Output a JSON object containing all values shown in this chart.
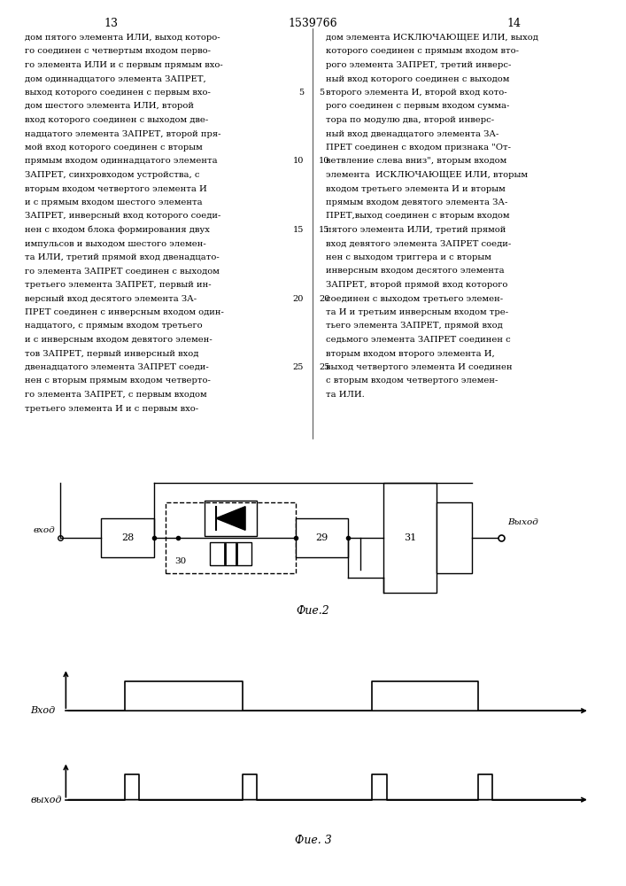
{
  "bg_color": "#ffffff",
  "text_color": "#000000",
  "page_numbers": [
    "13",
    "1539766",
    "14"
  ],
  "left_text": [
    "дом пятого элемента ИЛИ, выход которо-",
    "го соединен с четвертым входом перво-",
    "го элемента ИЛИ и с первым прямым вхо-",
    "дом одиннадцатого элемента ЗАПРЕТ,",
    "выход которого соединен с первым вхо-",
    "дом шестого элемента ИЛИ, второй",
    "вход которого соединен с выходом две-",
    "надцатого элемента ЗАПРЕТ, второй пря-",
    "мой вход которого соединен с вторым",
    "прямым входом одиннадцатого элемента",
    "ЗАПРЕТ, синхровходом устройства, с",
    "вторым входом четвертого элемента И",
    "и с прямым входом шестого элемента",
    "ЗАПРЕТ, инверсный вход которого соеди-",
    "нен с входом блока формирования двух",
    "импульсов и выходом шестого элемен-",
    "та ИЛИ, третий прямой вход двенадцато-",
    "го элемента ЗАПРЕТ соединен с выходом",
    "третьего элемента ЗАПРЕТ, первый ин-",
    "версный вход десятого элемента ЗА-",
    "ПРЕТ соединен с инверсным входом один-",
    "надцатого, с прямым входом третьего",
    "и с инверсным входом девятого элемен-",
    "тов ЗАПРЕТ, первый инверсный вход",
    "двенадцатого элемента ЗАПРЕТ соеди-",
    "нен с вторым прямым входом четверто-",
    "го элемента ЗАПРЕТ, с первым входом",
    "третьего элемента И и с первым вхо-"
  ],
  "right_text": [
    "дом элемента ИСКЛЮЧАЮЩЕЕ ИЛИ, выход",
    "которого соединен с прямым входом вто-",
    "рого элемента ЗАПРЕТ, третий инверс-",
    "ный вход которого соединен с выходом",
    "второго элемента И, второй вход кото-",
    "рого соединен с первым входом сумма-",
    "тора по модулю два, второй инверс-",
    "ный вход двенадцатого элемента ЗА-",
    "ПРЕТ соединен с входом признака \"От-",
    "ветвление слева вниз\", вторым входом",
    "элемента  ИСКЛЮЧАЮЩЕЕ ИЛИ, вторым",
    "входом третьего элемента И и вторым",
    "прямым входом девятого элемента ЗА-",
    "ПРЕТ,выход соединен с вторым входом",
    "пятого элемента ИЛИ, третий прямой",
    "вход девятого элемента ЗАПРЕТ соеди-",
    "нен с выходом триггера и с вторым",
    "инверсным входом десятого элемента",
    "ЗАПРЕТ, второй прямой вход которого",
    "соединен с выходом третьего элемен-",
    "та И и третьим инверсным входом тре-",
    "тьего элемента ЗАПРЕТ, прямой вход",
    "седьмого элемента ЗАПРЕТ соединен с",
    "вторым входом второго элемента И,",
    "выход четвертого элемента И соединен",
    "с вторым входом четвертого элемен-",
    "та ИЛИ."
  ],
  "fig2_label": "Фие.2",
  "fig3_label": "Фие. 3",
  "vhod_label": "вход",
  "vykhod_label": "Выход",
  "vhod_signal_label": "Вход",
  "vykhod_signal_label": "выход",
  "block28_label": "28",
  "block29_label": "29",
  "block30_label": "30",
  "block31_label": "31"
}
